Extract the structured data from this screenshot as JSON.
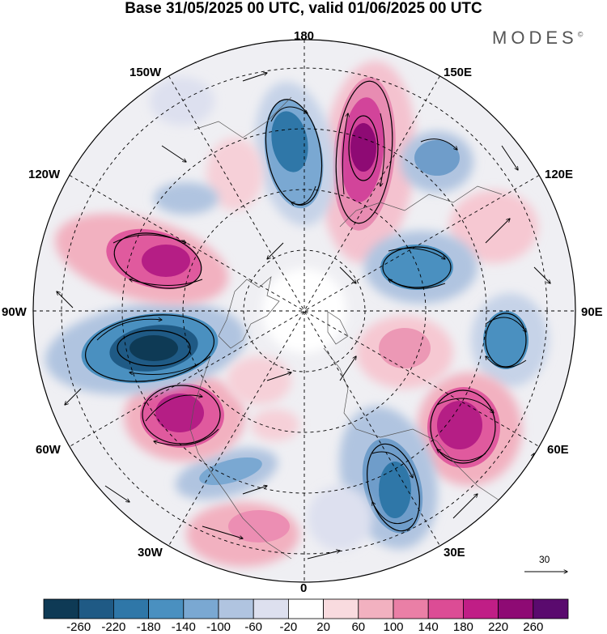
{
  "title": "Base 31/05/2025 00 UTC, valid 01/06/2025 00 UTC",
  "brand": "MODES",
  "brand_mark": "©",
  "longitude_labels": {
    "lon_180": "180",
    "lon_150w": "150W",
    "lon_150e": "150E",
    "lon_120w": "120W",
    "lon_120e": "120E",
    "lon_90w": "90W",
    "lon_90e": "90E",
    "lon_60w": "60W",
    "lon_60e": "60E",
    "lon_30w": "30W",
    "lon_30e": "30E",
    "lon_0": "0"
  },
  "vector_reference": {
    "value": "30"
  },
  "colorbar": {
    "ticks": [
      "-260",
      "-220",
      "-180",
      "-140",
      "-100",
      "-60",
      "-20",
      "20",
      "60",
      "100",
      "140",
      "180",
      "220",
      "260"
    ],
    "colors": [
      "#0e3a55",
      "#1f5a85",
      "#2f77a8",
      "#4a90c0",
      "#7aa8d2",
      "#b0c4e0",
      "#dde0ef",
      "#ffffff",
      "#f9dbdf",
      "#f2b1c0",
      "#ea7fa6",
      "#dc4c95",
      "#c01e86",
      "#8e0a74",
      "#5a0a6e"
    ]
  },
  "colors": {
    "strong_negative": "#1a4a70",
    "strong_positive": "#b51e85",
    "grid": "#000000"
  }
}
